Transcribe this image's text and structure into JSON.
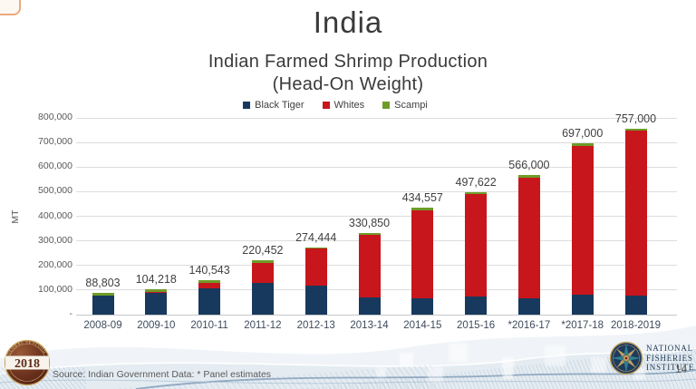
{
  "title": "India",
  "subtitle_line1": "Indian Farmed Shrimp Production",
  "subtitle_line2": "(Head-On Weight)",
  "source_note": "Source: Indian Government Data: * Panel estimates",
  "page": {
    "number": "14"
  },
  "badge": {
    "year": "2018",
    "ring_top": "GLOBAL SEAFOOD",
    "ring_bottom": "MARKET CONFERENCE"
  },
  "nfi_logo": {
    "line1": "NATIONAL",
    "line2": "FISHERIES",
    "line3": "INSTITUTE"
  },
  "colors": {
    "black_tiger": "#17395d",
    "whites": "#c8161d",
    "scampi": "#6e9c27",
    "gridline": "#dcddde",
    "axis_text": "#595959",
    "label_text": "#3f3f3f",
    "navy": "#1f3857"
  },
  "chart_data": {
    "type": "bar",
    "stacked": true,
    "title": "Indian Farmed Shrimp Production (Head-On Weight)",
    "xlabel": "",
    "ylabel": "MT",
    "ylim": [
      0,
      800000
    ],
    "ytick_step": 100000,
    "ytick_labels": [
      "-",
      "100,000",
      "200,000",
      "300,000",
      "400,000",
      "500,000",
      "600,000",
      "700,000",
      "800,000"
    ],
    "grid": true,
    "legend_position": "top",
    "categories": [
      "2008-09",
      "2009-10",
      "2010-11",
      "2011-12",
      "2012-13",
      "2013-14",
      "2014-15",
      "2015-16",
      "*2016-17",
      "*2017-18",
      "2018-2019"
    ],
    "totals": [
      88803,
      104218,
      140543,
      220452,
      274444,
      330850,
      434557,
      497622,
      566000,
      697000,
      757000
    ],
    "total_labels": [
      "88,803",
      "104,218",
      "140,543",
      "220,452",
      "274,444",
      "330,850",
      "434,557",
      "497,622",
      "566,000",
      "697,000",
      "757,000"
    ],
    "series": [
      {
        "name": "Black Tiger",
        "color": "#17395d",
        "values": [
          75997,
          90947,
          108700,
          129500,
          117000,
          70000,
          68000,
          75000,
          66000,
          81000,
          79000
        ]
      },
      {
        "name": "Whites",
        "color": "#c8161d",
        "values": [
          0,
          1731,
          22000,
          80046,
          151297,
          255350,
          357557,
          414622,
          490000,
          606000,
          671000
        ]
      },
      {
        "name": "Scampi",
        "color": "#6e9c27",
        "values": [
          12806,
          11540,
          9843,
          10906,
          6147,
          5500,
          9000,
          8000,
          10000,
          10000,
          7000
        ]
      }
    ]
  }
}
